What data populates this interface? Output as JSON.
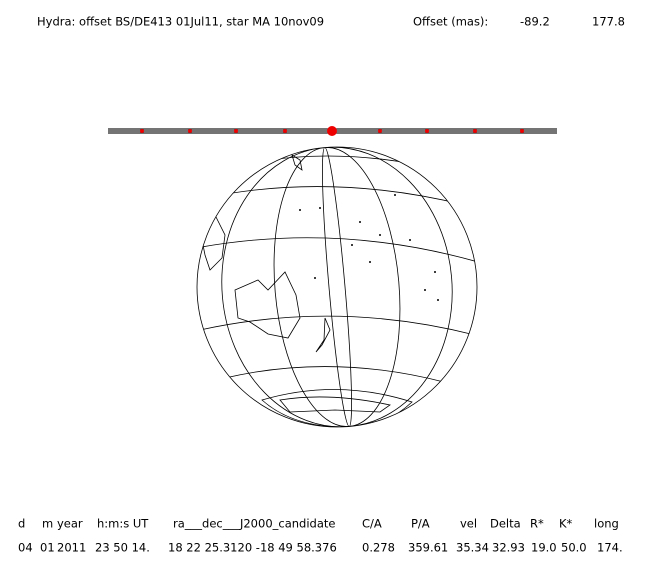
{
  "header": {
    "title": "Hydra: offset BS/DE413 01Jul11, star MA 10nov09",
    "offset_label": "Offset (mas):",
    "offset_values": [
      -89.2,
      177.8
    ]
  },
  "table": {
    "columns": [
      "d",
      "m",
      "year",
      "h:m:s UT",
      "ra___dec___J2000_candidate",
      "C/A",
      "P/A",
      "vel",
      "Delta",
      "R*",
      "K*",
      "long"
    ],
    "rows": [
      [
        "04",
        "01",
        "2011",
        "23 50 14.",
        "18 22 25.3120 -18 49 58.376",
        "0.278",
        "359.61",
        "35.34",
        "32.93",
        "19.0",
        "50.0",
        "174."
      ]
    ]
  }
}
